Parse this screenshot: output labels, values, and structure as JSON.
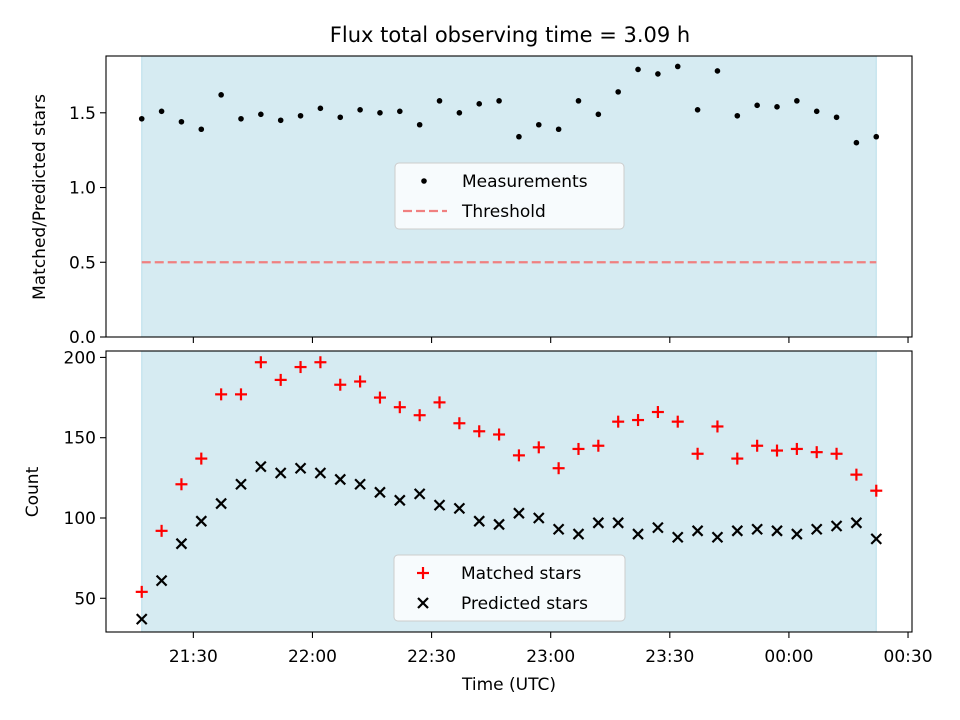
{
  "chart_data": {
    "type": "scatter",
    "title": "Flux total observing time = 3.09 h",
    "xlabel": "Time (UTC)",
    "x_tick_labels": [
      "21:30",
      "22:00",
      "22:30",
      "23:00",
      "23:30",
      "00:00",
      "00:30"
    ],
    "x_tick_times": [
      "21:30",
      "22:00",
      "22:30",
      "23:00",
      "23:30",
      "00:00",
      "00:30"
    ],
    "xlim": [
      "21:08",
      "00:31"
    ],
    "observing_window": [
      "21:17",
      "00:22"
    ],
    "colors": {
      "window": "#add8e6",
      "measurements": "#000000",
      "threshold": "#f08080",
      "matched": "#ff0000",
      "predicted": "#000000"
    },
    "x": [
      "21:17",
      "21:22",
      "21:27",
      "21:32",
      "21:37",
      "21:42",
      "21:47",
      "21:52",
      "21:57",
      "22:02",
      "22:07",
      "22:12",
      "22:17",
      "22:22",
      "22:27",
      "22:32",
      "22:37",
      "22:42",
      "22:47",
      "22:52",
      "22:57",
      "23:02",
      "23:07",
      "23:12",
      "23:17",
      "23:22",
      "23:27",
      "23:32",
      "23:37",
      "23:42",
      "23:47",
      "23:52",
      "23:57",
      "00:02",
      "00:07",
      "00:12",
      "00:17",
      "00:22"
    ],
    "top": {
      "ylabel": "Matched/Predicted stars",
      "ylim": [
        0,
        1.88
      ],
      "yticks": [
        0.0,
        0.5,
        1.0,
        1.5
      ],
      "y_tick_labels": [
        "0.0",
        "0.5",
        "1.0",
        "1.5"
      ],
      "series": [
        {
          "name": "Measurements",
          "marker": "dot",
          "values": [
            1.46,
            1.51,
            1.44,
            1.39,
            1.62,
            1.46,
            1.49,
            1.45,
            1.48,
            1.53,
            1.47,
            1.52,
            1.5,
            1.51,
            1.42,
            1.58,
            1.5,
            1.56,
            1.58,
            1.34,
            1.42,
            1.39,
            1.58,
            1.49,
            1.64,
            1.79,
            1.76,
            1.81,
            1.52,
            1.78,
            1.48,
            1.55,
            1.54,
            1.58,
            1.51,
            1.47,
            1.3,
            1.34
          ]
        },
        {
          "name": "Threshold",
          "marker": "dashed-line",
          "values": [
            0.5,
            0.5
          ]
        }
      ],
      "legend_position": "center"
    },
    "bottom": {
      "ylabel": "Count",
      "ylim": [
        29,
        204
      ],
      "yticks": [
        50,
        100,
        150,
        200
      ],
      "y_tick_labels": [
        "50",
        "100",
        "150",
        "200"
      ],
      "series": [
        {
          "name": "Matched stars",
          "marker": "plus",
          "values": [
            54,
            92,
            121,
            137,
            177,
            177,
            197,
            186,
            194,
            197,
            183,
            185,
            175,
            169,
            164,
            172,
            159,
            154,
            152,
            139,
            144,
            131,
            143,
            145,
            160,
            161,
            166,
            160,
            140,
            157,
            137,
            145,
            142,
            143,
            141,
            140,
            127,
            117
          ]
        },
        {
          "name": "Predicted stars",
          "marker": "x",
          "values": [
            37,
            61,
            84,
            98,
            109,
            121,
            132,
            128,
            131,
            128,
            124,
            121,
            116,
            111,
            115,
            108,
            106,
            98,
            96,
            103,
            100,
            93,
            90,
            97,
            97,
            90,
            94,
            88,
            92,
            88,
            92,
            93,
            92,
            90,
            93,
            95,
            97,
            87
          ]
        }
      ],
      "legend_position": "lower center"
    }
  }
}
